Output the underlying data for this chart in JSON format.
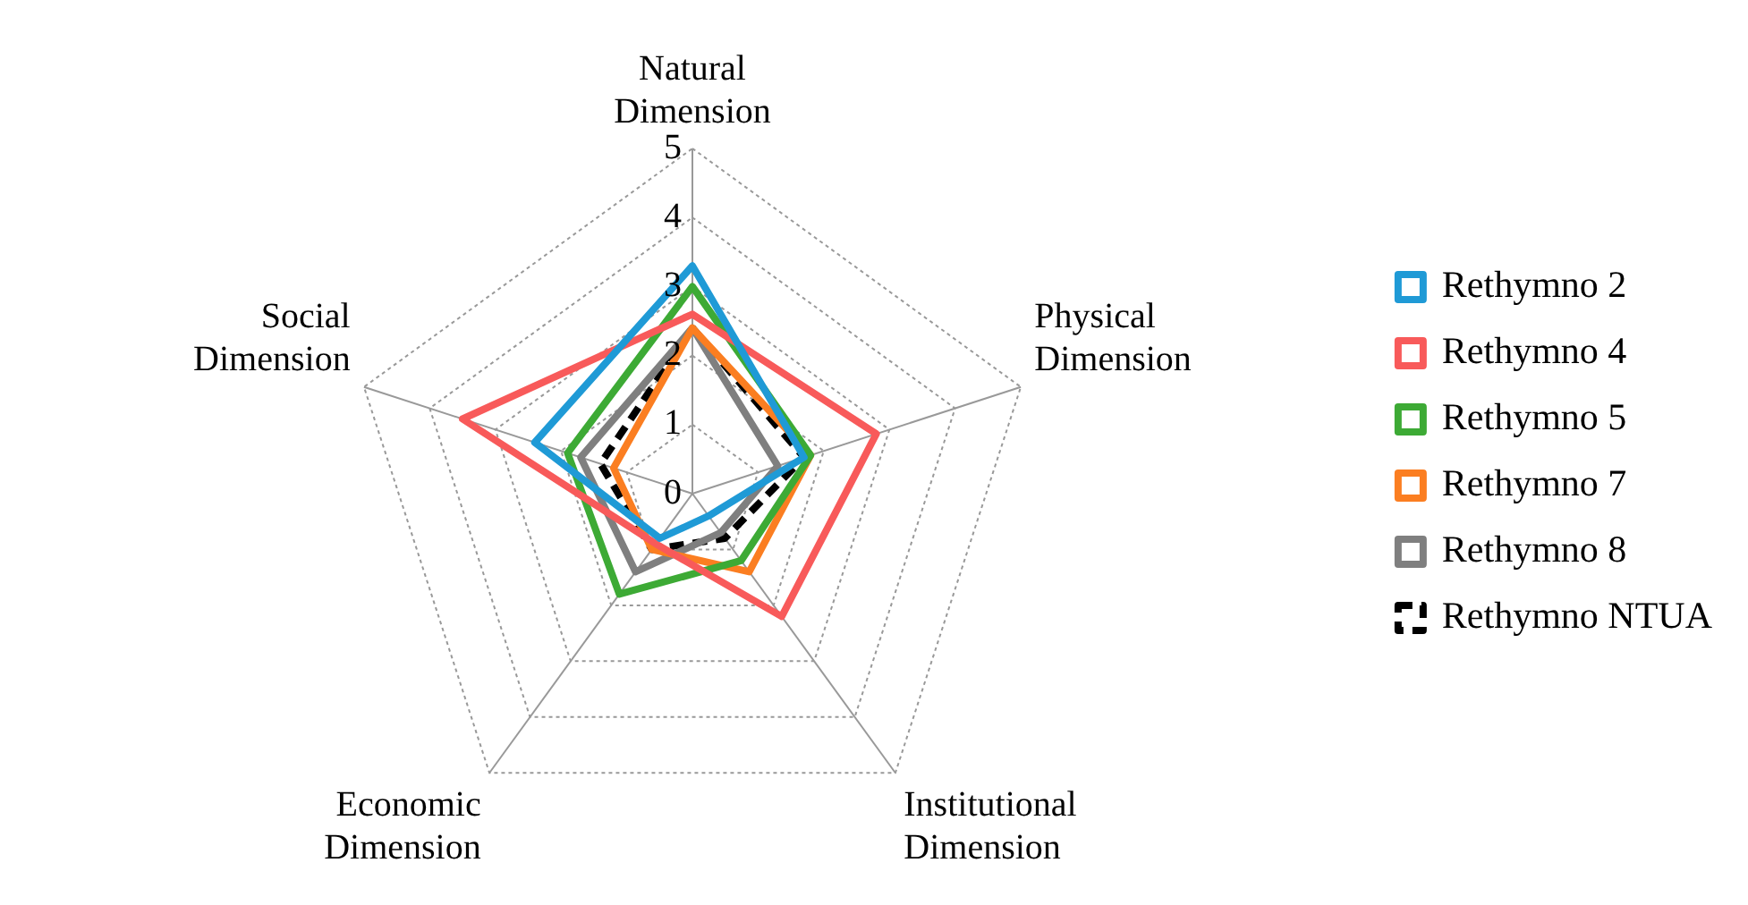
{
  "chart_data": {
    "type": "radar",
    "categories": [
      "Natural Dimension",
      "Physical Dimension",
      "Institutional Dimension",
      "Economic Dimension",
      "Social Dimension"
    ],
    "series": [
      {
        "name": "Rethymno 2",
        "color": "#1f9ad6",
        "values": [
          3.3,
          1.7,
          0.4,
          0.8,
          2.4
        ]
      },
      {
        "name": "Rethymno 4",
        "color": "#f85a5a",
        "values": [
          2.6,
          2.8,
          2.2,
          0.9,
          3.5
        ]
      },
      {
        "name": "Rethymno 5",
        "color": "#3daa35",
        "values": [
          3.0,
          1.8,
          1.2,
          1.8,
          1.9
        ]
      },
      {
        "name": "Rethymno 7",
        "color": "#fb7e21",
        "values": [
          2.4,
          1.8,
          1.4,
          1.0,
          1.2
        ]
      },
      {
        "name": "Rethymno 8",
        "color": "#7f7f7f",
        "values": [
          2.4,
          1.3,
          0.7,
          1.4,
          1.7
        ]
      },
      {
        "name": "Rethymno NTUA",
        "color": "#000000",
        "line_style": "dashed",
        "values": [
          2.4,
          1.7,
          0.8,
          1.0,
          1.4
        ]
      }
    ],
    "ylim": [
      0,
      5
    ],
    "yticks": [
      0,
      1,
      2,
      3,
      4,
      5
    ],
    "grid": true,
    "legend": "right",
    "marker": "none"
  }
}
